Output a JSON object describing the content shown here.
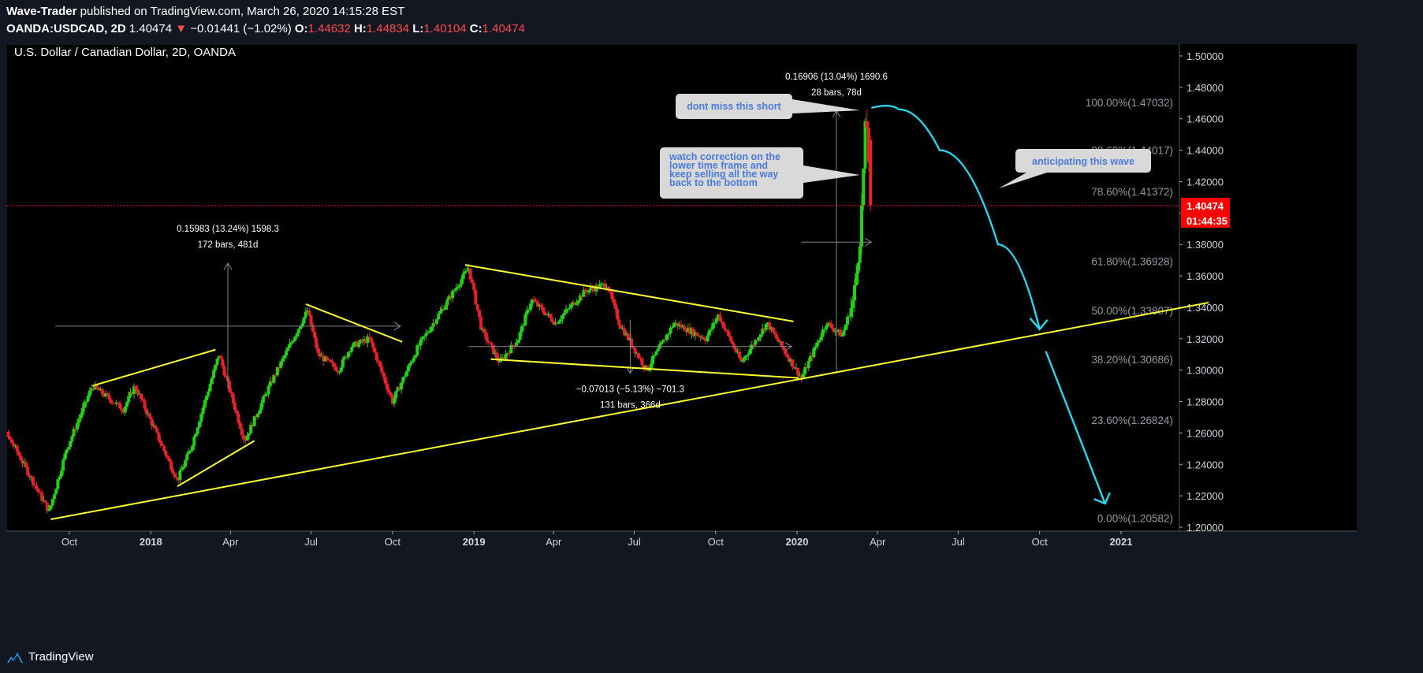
{
  "header": {
    "author": "Wave-Trader",
    "published": "published on TradingView.com, March 26, 2020 14:15:28 EST",
    "symbol": "OANDA:USDCAD, 2D",
    "last": "1.40474",
    "change": "−0.01441 (−1.02%)",
    "o_label": "O:",
    "o": "1.44632",
    "h_label": "H:",
    "h": "1.44834",
    "l_label": "L:",
    "l": "1.40104",
    "c_label": "C:",
    "c": "1.40474"
  },
  "footer": {
    "brand": "TradingView"
  },
  "colors": {
    "background": "#000000",
    "frame": "#131722",
    "up": "#22d116",
    "down": "#e3212b",
    "trendline": "#ffff2e",
    "projection": "#22d9f0",
    "price_line": "#ff0000",
    "annotation_bg": "#d9d9d9",
    "annotation_text": "#4a7bd8"
  },
  "chart_data": {
    "type": "candlestick",
    "title": "U.S. Dollar / Canadian Dollar, 2D, OANDA",
    "ylim": [
      1.2,
      1.5
    ],
    "y_ticks": [
      "1.50000",
      "1.48000",
      "1.46000",
      "1.44000",
      "1.42000",
      "1.40000",
      "1.38000",
      "1.36000",
      "1.34000",
      "1.32000",
      "1.30000",
      "1.28000",
      "1.26000",
      "1.24000",
      "1.22000",
      "1.20000"
    ],
    "x_ticks": [
      "Oct",
      "2018",
      "Apr",
      "Jul",
      "Oct",
      "2019",
      "Apr",
      "Jul",
      "Oct",
      "2020",
      "Apr",
      "Jul",
      "Oct",
      "2021"
    ],
    "x_tick_dates": [
      "2017-10-01",
      "2018-01-01",
      "2018-04-01",
      "2018-07-01",
      "2018-10-01",
      "2019-01-01",
      "2019-04-01",
      "2019-07-01",
      "2019-10-01",
      "2020-01-01",
      "2020-04-01",
      "2020-07-01",
      "2020-10-01",
      "2021-01-01"
    ],
    "price_anchors": [
      [
        "2017-06-22",
        1.325
      ],
      [
        "2017-07-10",
        1.27
      ],
      [
        "2017-08-01",
        1.25
      ],
      [
        "2017-09-08",
        1.21
      ],
      [
        "2017-09-28",
        1.25
      ],
      [
        "2017-10-27",
        1.29
      ],
      [
        "2017-12-01",
        1.275
      ],
      [
        "2017-12-14",
        1.29
      ],
      [
        "2018-01-31",
        1.23
      ],
      [
        "2018-02-15",
        1.25
      ],
      [
        "2018-03-19",
        1.31
      ],
      [
        "2018-04-17",
        1.255
      ],
      [
        "2018-05-15",
        1.29
      ],
      [
        "2018-06-27",
        1.338
      ],
      [
        "2018-07-09",
        1.31
      ],
      [
        "2018-08-01",
        1.3
      ],
      [
        "2018-08-15",
        1.315
      ],
      [
        "2018-09-05",
        1.32
      ],
      [
        "2018-10-01",
        1.28
      ],
      [
        "2018-10-30",
        1.315
      ],
      [
        "2018-12-26",
        1.365
      ],
      [
        "2019-01-10",
        1.325
      ],
      [
        "2019-01-30",
        1.305
      ],
      [
        "2019-02-20",
        1.32
      ],
      [
        "2019-03-07",
        1.345
      ],
      [
        "2019-04-03",
        1.33
      ],
      [
        "2019-05-06",
        1.35
      ],
      [
        "2019-05-31",
        1.355
      ],
      [
        "2019-06-14",
        1.33
      ],
      [
        "2019-07-15",
        1.3
      ],
      [
        "2019-08-15",
        1.33
      ],
      [
        "2019-09-20",
        1.32
      ],
      [
        "2019-10-04",
        1.335
      ],
      [
        "2019-10-30",
        1.305
      ],
      [
        "2019-11-28",
        1.33
      ],
      [
        "2019-12-20",
        1.31
      ],
      [
        "2020-01-06",
        1.295
      ],
      [
        "2020-02-03",
        1.33
      ],
      [
        "2020-02-21",
        1.322
      ],
      [
        "2020-03-05",
        1.345
      ],
      [
        "2020-03-13",
        1.39
      ],
      [
        "2020-03-19",
        1.465
      ],
      [
        "2020-03-25",
        1.405
      ]
    ],
    "last_price": "1.40474",
    "countdown": "01:44:35",
    "fib_levels": [
      {
        "label": "100.00%(1.47032)",
        "value": 1.47032
      },
      {
        "label": "88.60%(1.44017)",
        "value": 1.44017
      },
      {
        "label": "78.60%(1.41372)",
        "value": 1.41372
      },
      {
        "label": "61.80%(1.36928)",
        "value": 1.36928
      },
      {
        "label": "50.00%(1.33807)",
        "value": 1.33807
      },
      {
        "label": "38.20%(1.30686)",
        "value": 1.30686
      },
      {
        "label": "23.60%(1.26824)",
        "value": 1.26824
      },
      {
        "label": "0.00%(1.20582)",
        "value": 1.20582
      }
    ],
    "trendlines": [
      {
        "name": "long-term-support",
        "from": [
          "2017-09-10",
          1.205
        ],
        "to": [
          "2021-04-10",
          1.343
        ]
      },
      {
        "name": "wedge-1",
        "from": [
          "2017-10-27",
          1.29
        ],
        "to": [
          "2018-03-15",
          1.313
        ]
      },
      {
        "name": "wedge-1b",
        "from": [
          "2018-01-31",
          1.226
        ],
        "to": [
          "2018-04-28",
          1.255
        ]
      },
      {
        "name": "wedge-2",
        "from": [
          "2018-06-25",
          1.342
        ],
        "to": [
          "2018-10-12",
          1.318
        ]
      },
      {
        "name": "triangle-top",
        "from": [
          "2018-12-22",
          1.367
        ],
        "to": [
          "2019-12-28",
          1.331
        ]
      },
      {
        "name": "triangle-bottom",
        "from": [
          "2019-01-20",
          1.307
        ],
        "to": [
          "2020-01-03",
          1.295
        ]
      }
    ],
    "measures": [
      {
        "lines": [
          "0.15983 (13.24%) 1598.3",
          "172 bars, 481d"
        ],
        "x1": "2017-09-15",
        "x2": "2018-10-10",
        "y1": 1.288,
        "y2": 1.368
      },
      {
        "lines": [
          "−0.07013 (−5.13%) −701.3",
          "131 bars, 366d"
        ],
        "x1": "2018-12-26",
        "x2": "2019-12-26",
        "y1": 1.332,
        "y2": 1.298
      },
      {
        "lines": [
          "0.16906 (13.04%) 1690.6",
          "28 bars, 78d"
        ],
        "x1": "2020-01-06",
        "x2": "2020-03-25",
        "y1": 1.298,
        "y2": 1.465
      }
    ],
    "annotations": [
      {
        "name": "dont-miss",
        "text": [
          "dont miss this short"
        ]
      },
      {
        "name": "watch-correction",
        "text": [
          "watch correction on the",
          "lower time frame and",
          "keep selling all the way",
          "back to the bottom"
        ]
      },
      {
        "name": "anticipating",
        "text": [
          "anticipating this wave"
        ]
      }
    ],
    "projection": [
      [
        "2020-03-25",
        1.467
      ],
      [
        "2020-04-25",
        1.466
      ],
      [
        "2020-06-10",
        1.44
      ],
      [
        "2020-08-15",
        1.38
      ],
      [
        "2020-10-01",
        1.326
      ]
    ],
    "projection2": [
      [
        "2020-10-08",
        1.312
      ],
      [
        "2020-12-14",
        1.215
      ]
    ]
  }
}
